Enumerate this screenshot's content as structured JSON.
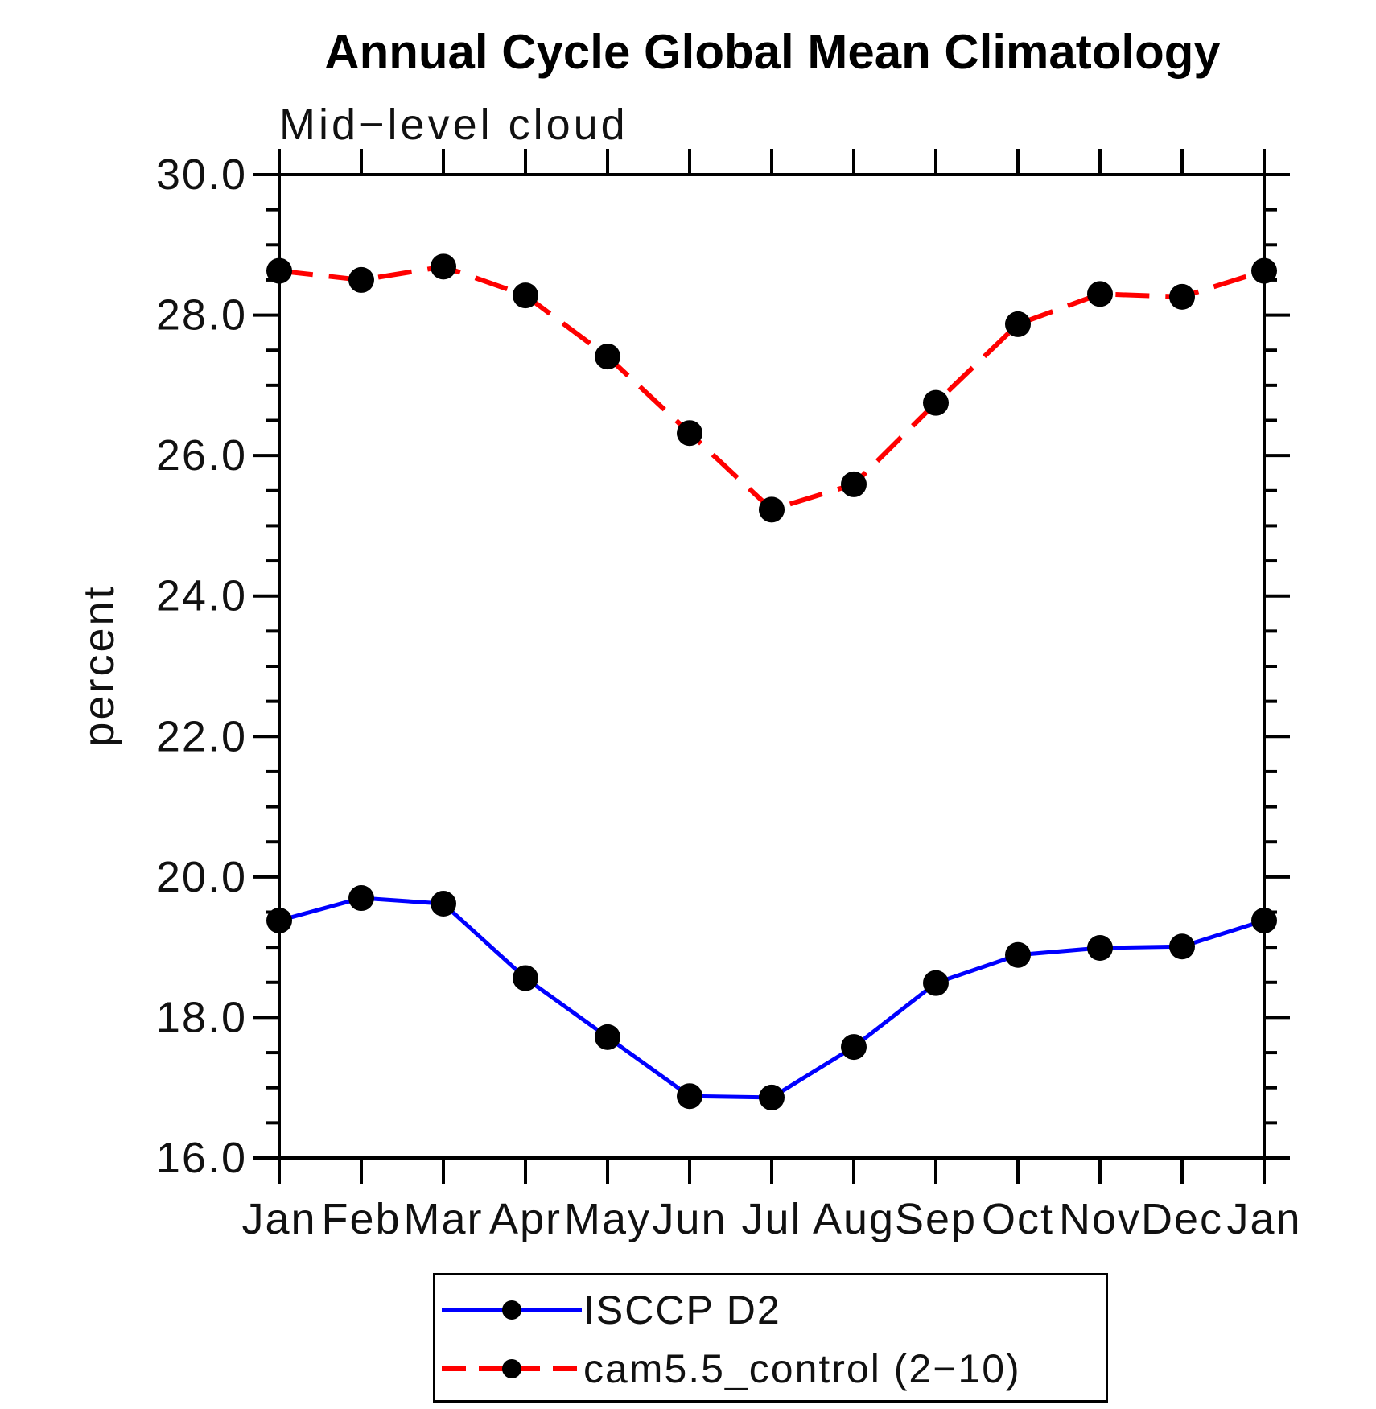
{
  "chart_data": {
    "type": "line",
    "title": "Annual Cycle Global Mean Climatology",
    "subtitle": "Mid−level cloud",
    "ylabel": "percent",
    "xlabel": "",
    "categories": [
      "Jan",
      "Feb",
      "Mar",
      "Apr",
      "May",
      "Jun",
      "Jul",
      "Aug",
      "Sep",
      "Oct",
      "Nov",
      "Dec",
      "Jan"
    ],
    "series": [
      {
        "name": "ISCCP D2",
        "color": "#0000ff",
        "line_style": "solid",
        "marker": "filled-circle",
        "marker_color": "#000000",
        "values": [
          19.38,
          19.7,
          19.62,
          18.56,
          17.72,
          16.88,
          16.86,
          17.58,
          18.49,
          18.89,
          18.99,
          19.01,
          19.38
        ]
      },
      {
        "name": "cam5.5_control (2−10)",
        "color": "#ff0000",
        "line_style": "dashed",
        "marker": "filled-circle",
        "marker_color": "#000000",
        "values": [
          28.63,
          28.5,
          28.69,
          28.28,
          27.41,
          26.32,
          25.23,
          25.59,
          26.75,
          27.87,
          28.3,
          28.26,
          28.63
        ]
      }
    ],
    "ylim": [
      16.0,
      30.0
    ],
    "yticks": [
      16.0,
      18.0,
      20.0,
      22.0,
      24.0,
      26.0,
      28.0,
      30.0
    ],
    "ytick_labels": [
      "16.0",
      "18.0",
      "20.0",
      "22.0",
      "24.0",
      "26.0",
      "28.0",
      "30.0"
    ],
    "minor_tick_interval": 0.5,
    "grid": false,
    "legend_position": "bottom"
  }
}
